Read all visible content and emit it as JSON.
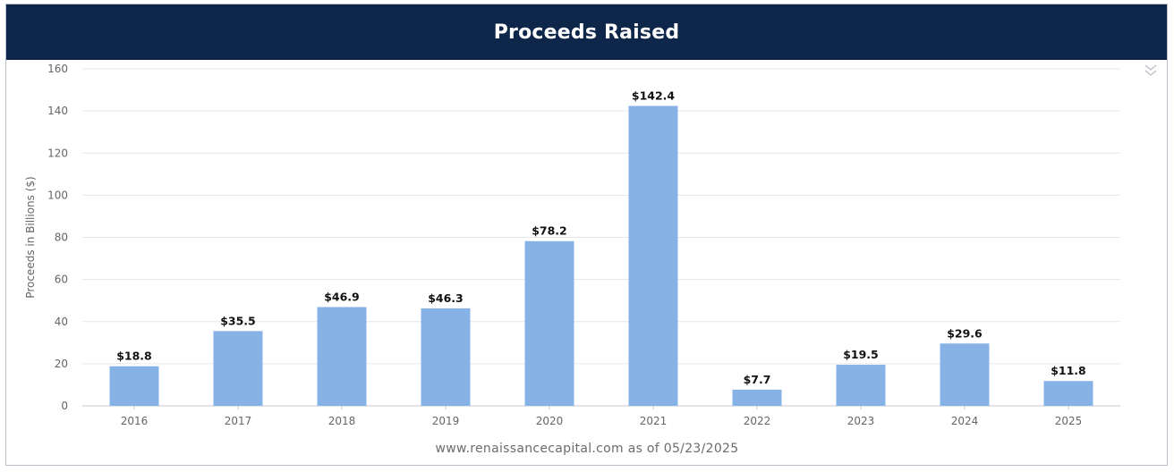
{
  "header": {
    "title": "Proceeds Raised"
  },
  "footer": {
    "credit": "www.renaissancecapital.com as of 05/23/2025"
  },
  "colors": {
    "header_bg": "#0d2649",
    "bar": "#87b2e6",
    "grid": "#e6e6e6",
    "axis_text": "#666666"
  },
  "icons": {
    "menu": "double-chevron-down-icon"
  },
  "chart_data": {
    "type": "bar",
    "title": "",
    "xlabel": "",
    "ylabel": "Proceeds in Billions ($)",
    "ylim": [
      0,
      160
    ],
    "yticks": [
      0,
      20,
      40,
      60,
      80,
      100,
      120,
      140,
      160
    ],
    "categories": [
      "2016",
      "2017",
      "2018",
      "2019",
      "2020",
      "2021",
      "2022",
      "2023",
      "2024",
      "2025"
    ],
    "values": [
      18.8,
      35.5,
      46.9,
      46.3,
      78.2,
      142.4,
      7.7,
      19.5,
      29.6,
      11.8
    ],
    "data_labels": [
      "$18.8",
      "$35.5",
      "$46.9",
      "$46.3",
      "$78.2",
      "$142.4",
      "$7.7",
      "$19.5",
      "$29.6",
      "$11.8"
    ],
    "grid": true,
    "legend": "none"
  }
}
